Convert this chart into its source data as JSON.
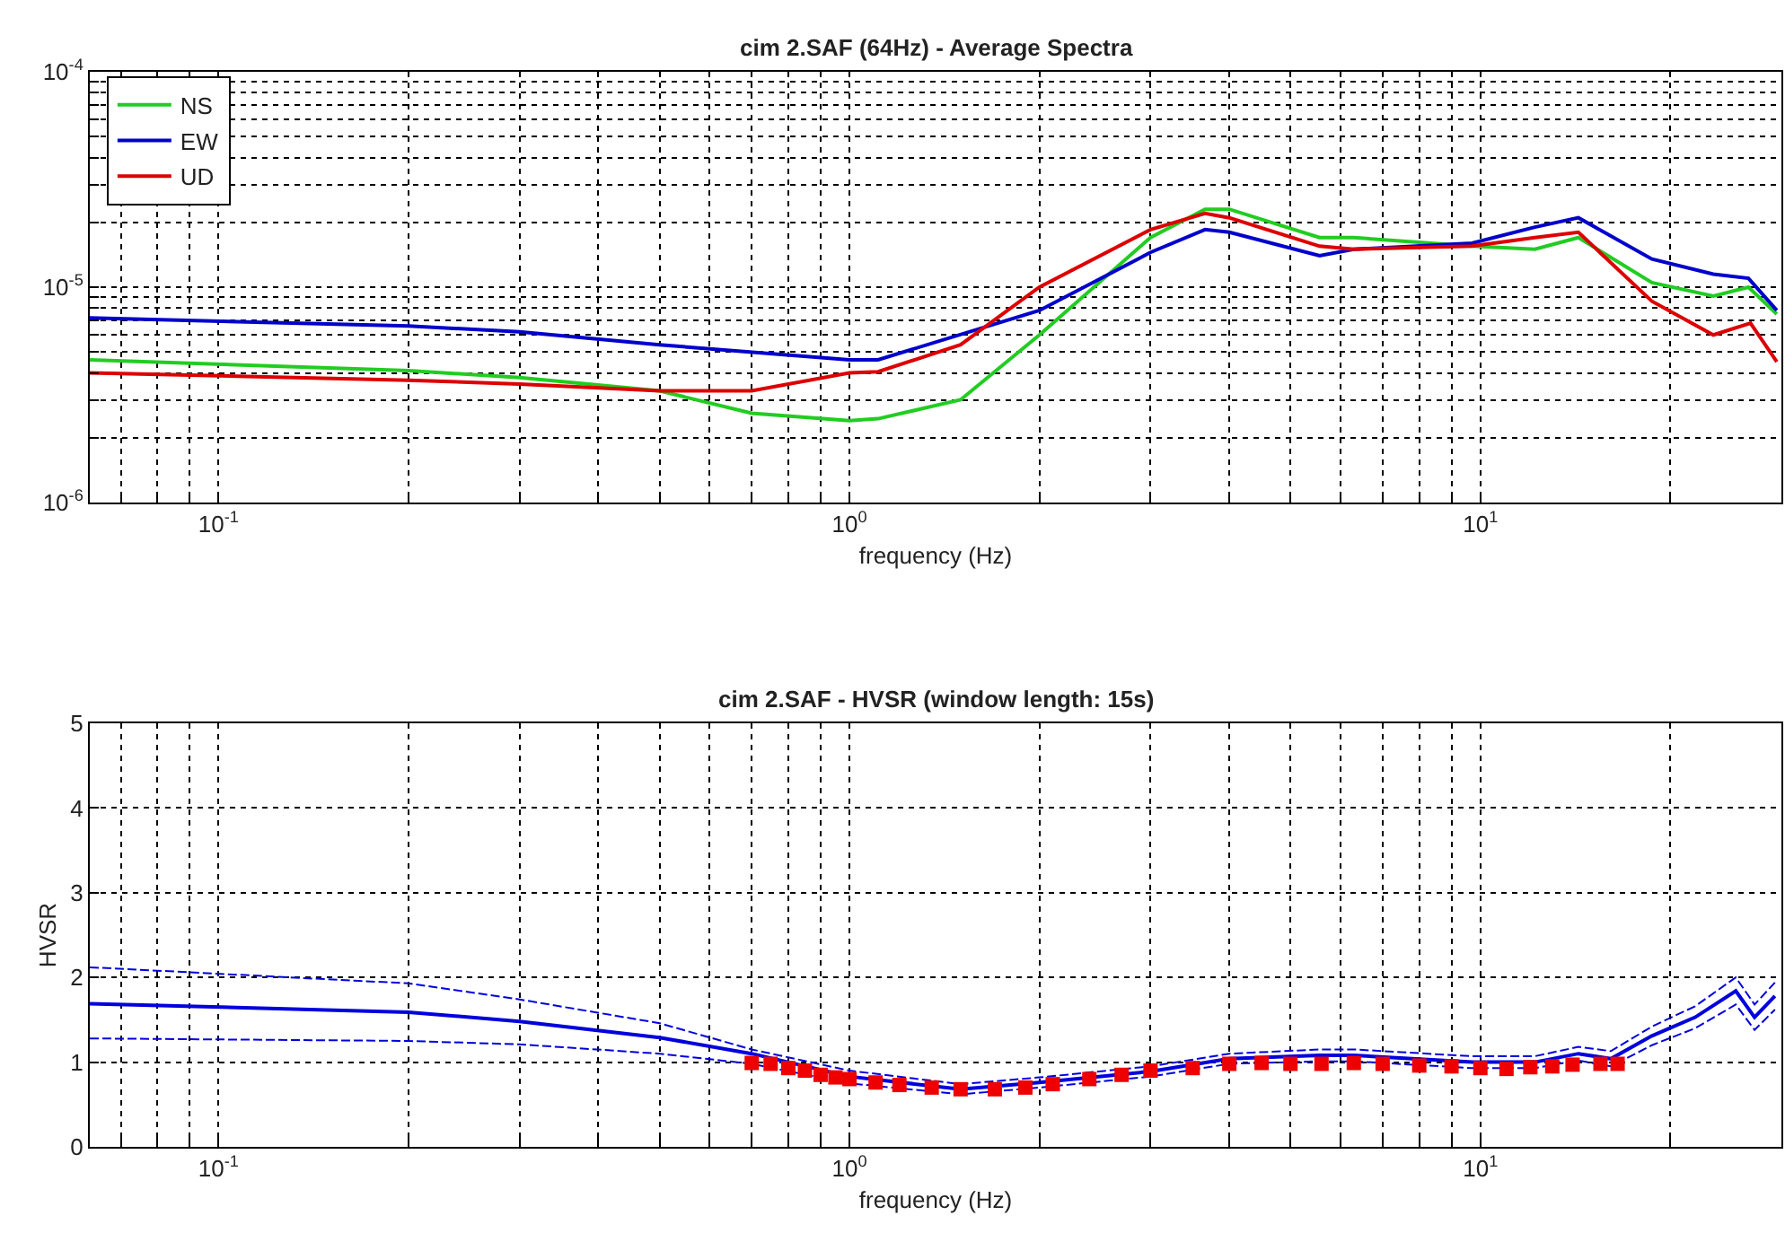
{
  "chart_data": [
    {
      "type": "line",
      "title": "cim 2.SAF (64Hz) - Average Spectra",
      "xlabel": "frequency (Hz)",
      "log": "xy",
      "grid": true,
      "legend": "top left",
      "line_style": "solid",
      "xlim": [
        0.0625,
        30
      ],
      "xticks": [
        {
          "value": 0.07,
          "label": null
        },
        {
          "value": 0.08,
          "label": null
        },
        {
          "value": 0.09,
          "label": null
        },
        {
          "value": 0.1,
          "label": "10$^{-1}$"
        },
        {
          "value": 0.2,
          "label": null
        },
        {
          "value": 0.3,
          "label": null
        },
        {
          "value": 0.4,
          "label": null
        },
        {
          "value": 0.5,
          "label": null
        },
        {
          "value": 0.6,
          "label": null
        },
        {
          "value": 0.7,
          "label": null
        },
        {
          "value": 0.8,
          "label": null
        },
        {
          "value": 0.9,
          "label": null
        },
        {
          "value": 1,
          "label": "10$^{0}$"
        },
        {
          "value": 2,
          "label": null
        },
        {
          "value": 3,
          "label": null
        },
        {
          "value": 4,
          "label": null
        },
        {
          "value": 5,
          "label": null
        },
        {
          "value": 6,
          "label": null
        },
        {
          "value": 7,
          "label": null
        },
        {
          "value": 8,
          "label": null
        },
        {
          "value": 9,
          "label": null
        },
        {
          "value": 10,
          "label": "10$^{1}$"
        },
        {
          "value": 20,
          "label": null
        }
      ],
      "ylim": [
        1e-06,
        0.0001
      ],
      "yticks": [
        {
          "value": 1e-06,
          "label": "10$^{-6}$"
        },
        {
          "value": 2e-06,
          "label": null
        },
        {
          "value": 3e-06,
          "label": null
        },
        {
          "value": 4e-06,
          "label": null
        },
        {
          "value": 5e-06,
          "label": null
        },
        {
          "value": 6e-06,
          "label": null
        },
        {
          "value": 7e-06,
          "label": null
        },
        {
          "value": 8e-06,
          "label": null
        },
        {
          "value": 9e-06,
          "label": null
        },
        {
          "value": 1e-05,
          "label": "10$^{-5}$"
        },
        {
          "value": 2e-05,
          "label": null
        },
        {
          "value": 3e-05,
          "label": null
        },
        {
          "value": 4e-05,
          "label": null
        },
        {
          "value": 5e-05,
          "label": null
        },
        {
          "value": 6e-05,
          "label": null
        },
        {
          "value": 7e-05,
          "label": null
        },
        {
          "value": 8e-05,
          "label": null
        },
        {
          "value": 9e-05,
          "label": null
        },
        {
          "value": 0.0001,
          "label": "10$^{-4}$"
        }
      ],
      "series": [
        {
          "name": "NS",
          "color": "#22cc22",
          "x": [
            0.0625,
            0.2,
            0.3,
            0.5,
            0.7,
            1.0,
            1.11,
            1.5,
            2,
            3,
            3.66,
            4,
            5.56,
            6.3,
            9.7,
            12.2,
            14.3,
            18.7,
            23.4,
            26.6,
            29.5
          ],
          "values": [
            4.6e-06,
            4.1e-06,
            3.8e-06,
            3.3e-06,
            2.6e-06,
            2.4e-06,
            2.45e-06,
            3e-06,
            6e-06,
            1.7e-05,
            2.3e-05,
            2.3e-05,
            1.7e-05,
            1.7e-05,
            1.55e-05,
            1.5e-05,
            1.7e-05,
            1.05e-05,
            9.1e-06,
            1e-05,
            7.5e-06
          ]
        },
        {
          "name": "EW",
          "color": "#0000cc",
          "x": [
            0.0625,
            0.2,
            0.3,
            0.5,
            1.0,
            1.11,
            2,
            3,
            3.66,
            4,
            5.56,
            6.3,
            9.7,
            12.2,
            14.3,
            18.7,
            23.4,
            26.6,
            29.5
          ],
          "values": [
            7.2e-06,
            6.6e-06,
            6.2e-06,
            5.4e-06,
            4.6e-06,
            4.6e-06,
            7.8e-06,
            1.45e-05,
            1.85e-05,
            1.8e-05,
            1.4e-05,
            1.5e-05,
            1.6e-05,
            1.9e-05,
            2.1e-05,
            1.35e-05,
            1.15e-05,
            1.1e-05,
            7.8e-06
          ]
        },
        {
          "name": "UD",
          "color": "#dd0000",
          "x": [
            0.0625,
            0.2,
            0.3,
            0.5,
            0.7,
            1.0,
            1.11,
            1.5,
            2,
            3,
            3.66,
            4,
            5.56,
            6.3,
            9.7,
            12.2,
            14.3,
            18.7,
            23.4,
            26.8,
            29.5
          ],
          "values": [
            4e-06,
            3.7e-06,
            3.55e-06,
            3.3e-06,
            3.3e-06,
            4e-06,
            4.05e-06,
            5.4e-06,
            1e-05,
            1.85e-05,
            2.2e-05,
            2.1e-05,
            1.55e-05,
            1.5e-05,
            1.55e-05,
            1.7e-05,
            1.8e-05,
            8.6e-06,
            6e-06,
            6.8e-06,
            4.5e-06
          ]
        }
      ]
    },
    {
      "type": "line",
      "title": "cim 2.SAF - HVSR (window length: 15s)",
      "xlabel": "frequency (Hz)",
      "ylabel": "HVSR",
      "log": "x",
      "grid": true,
      "line_style": "solid",
      "xlim": [
        0.0625,
        30
      ],
      "xticks": [
        {
          "value": 0.07,
          "label": null
        },
        {
          "value": 0.08,
          "label": null
        },
        {
          "value": 0.09,
          "label": null
        },
        {
          "value": 0.1,
          "label": "10$^{-1}$"
        },
        {
          "value": 0.2,
          "label": null
        },
        {
          "value": 0.3,
          "label": null
        },
        {
          "value": 0.4,
          "label": null
        },
        {
          "value": 0.5,
          "label": null
        },
        {
          "value": 0.6,
          "label": null
        },
        {
          "value": 0.7,
          "label": null
        },
        {
          "value": 0.8,
          "label": null
        },
        {
          "value": 0.9,
          "label": null
        },
        {
          "value": 1,
          "label": "10$^{0}$"
        },
        {
          "value": 2,
          "label": null
        },
        {
          "value": 3,
          "label": null
        },
        {
          "value": 4,
          "label": null
        },
        {
          "value": 5,
          "label": null
        },
        {
          "value": 6,
          "label": null
        },
        {
          "value": 7,
          "label": null
        },
        {
          "value": 8,
          "label": null
        },
        {
          "value": 9,
          "label": null
        },
        {
          "value": 10,
          "label": "10$^{1}$"
        },
        {
          "value": 20,
          "label": null
        }
      ],
      "ylim": [
        0,
        5
      ],
      "yticks": [
        0,
        1,
        2,
        3,
        4,
        5
      ],
      "series": [
        {
          "color": "#0000dd",
          "x": [
            0.0625,
            0.2,
            0.3,
            0.5,
            0.7,
            1.0,
            1.5,
            2,
            3,
            4,
            5.56,
            6.3,
            9.7,
            12.2,
            14.3,
            16.1,
            18.7,
            21.9,
            25.4,
            27.2,
            29.3
          ],
          "values": [
            1.69,
            1.59,
            1.48,
            1.29,
            1.1,
            0.83,
            0.68,
            0.76,
            0.89,
            1.04,
            1.08,
            1.08,
            1.0,
            1.0,
            1.1,
            1.04,
            1.31,
            1.53,
            1.84,
            1.53,
            1.78
          ]
        },
        {
          "color": "#0000dd",
          "line_style": "dashed",
          "x": [
            0.0625,
            0.2,
            0.3,
            0.5,
            0.7,
            1.0,
            1.5,
            2,
            3,
            4,
            5.56,
            6.3,
            9.7,
            12.2,
            14.3,
            16.1,
            18.7,
            21.9,
            25.4,
            27.2,
            29.3
          ],
          "values": [
            1.28,
            1.25,
            1.21,
            1.1,
            0.98,
            0.75,
            0.62,
            0.7,
            0.83,
            0.98,
            1.01,
            1.01,
            0.93,
            0.93,
            1.02,
            0.95,
            1.2,
            1.4,
            1.68,
            1.38,
            1.62
          ]
        },
        {
          "color": "#0000dd",
          "line_style": "dashed",
          "x": [
            0.0625,
            0.2,
            0.3,
            0.5,
            0.7,
            1.0,
            1.5,
            2,
            3,
            4,
            5.56,
            6.3,
            9.7,
            12.2,
            14.3,
            16.1,
            18.7,
            21.9,
            25.4,
            27.2,
            29.3
          ],
          "values": [
            2.12,
            1.93,
            1.74,
            1.46,
            1.15,
            0.9,
            0.74,
            0.82,
            0.95,
            1.1,
            1.15,
            1.15,
            1.07,
            1.07,
            1.18,
            1.13,
            1.42,
            1.66,
            2.0,
            1.68,
            1.94
          ]
        },
        {
          "type": "scatter",
          "marker": "square",
          "color": "#ee0000",
          "x": [
            0.7,
            0.75,
            0.8,
            0.85,
            0.9,
            0.95,
            1.0,
            1.1,
            1.2,
            1.35,
            1.5,
            1.7,
            1.9,
            2.1,
            2.4,
            2.7,
            3.0,
            3.5,
            4.0,
            4.5,
            5.0,
            5.6,
            6.3,
            7.0,
            8.0,
            9.0,
            10,
            11,
            12,
            13,
            14,
            15.5,
            16.5
          ],
          "values": [
            0.99,
            0.98,
            0.93,
            0.9,
            0.85,
            0.82,
            0.8,
            0.76,
            0.73,
            0.7,
            0.68,
            0.68,
            0.7,
            0.74,
            0.8,
            0.85,
            0.9,
            0.93,
            0.98,
            0.99,
            0.98,
            0.98,
            0.99,
            0.98,
            0.96,
            0.95,
            0.93,
            0.92,
            0.94,
            0.95,
            0.97,
            0.98,
            0.98
          ]
        }
      ]
    }
  ]
}
